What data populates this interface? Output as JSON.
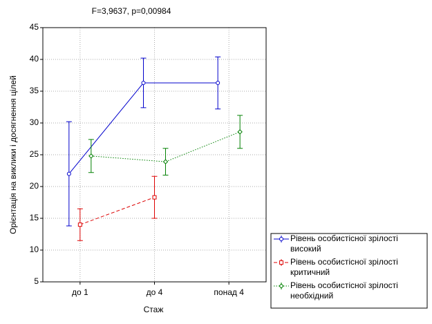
{
  "chart_data": {
    "type": "line",
    "title": "F=3,9637, p=0,00984",
    "x_label": "Стаж",
    "y_label": "Орієнтація на виклики і досягнення цілей",
    "categories": [
      "до 1",
      "до 4",
      "понад 4"
    ],
    "ylim": [
      5,
      45
    ],
    "yticks": [
      5,
      10,
      15,
      20,
      25,
      30,
      35,
      40,
      45
    ],
    "grid": true,
    "series": [
      {
        "name": "Рівень особистісної зрілості високий",
        "color": "#0000cc",
        "line_style": "solid",
        "marker": "circle",
        "values": [
          22,
          36.3,
          36.3
        ],
        "errors": [
          8.2,
          3.9,
          4.1
        ]
      },
      {
        "name": "Рівень особистісної зрілості критичний",
        "color": "#dd0000",
        "line_style": "dashed",
        "marker": "square",
        "values": [
          14,
          18.3,
          null
        ],
        "errors": [
          2.5,
          3.3,
          null
        ]
      },
      {
        "name": "Рівень особистісної зрілості необхідний",
        "color": "#008000",
        "line_style": "dotted",
        "marker": "diamond",
        "values": [
          24.8,
          23.9,
          28.6
        ],
        "errors": [
          2.6,
          2.1,
          2.6
        ]
      }
    ]
  }
}
